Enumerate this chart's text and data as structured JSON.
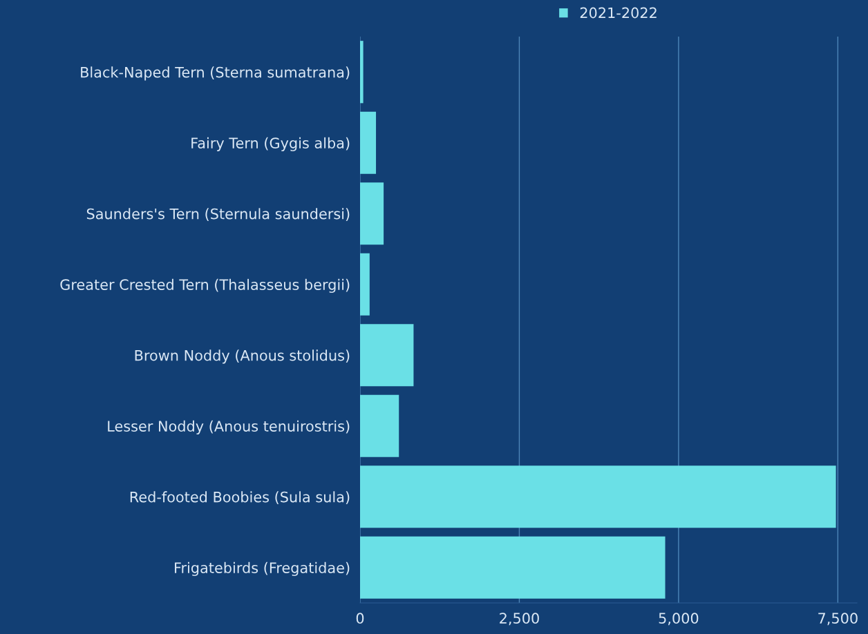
{
  "chart_data": {
    "type": "bar",
    "orientation": "horizontal",
    "categories": [
      "Black-Naped Tern (Sterna sumatrana)",
      "Fairy Tern (Gygis alba)",
      "Saunders's Tern (Sternula saundersi)",
      "Greater Crested Tern (Thalasseus bergii)",
      "Brown Noddy (Anous stolidus)",
      "Lesser Noddy (Anous tenuirostris)",
      "Red-footed Boobies (Sula sula)",
      "Frigatebirds (Fregatidae)"
    ],
    "series": [
      {
        "name": "2021-2022",
        "color": "#6ae0e6",
        "values": [
          50,
          250,
          370,
          150,
          840,
          610,
          7470,
          4790
        ]
      }
    ],
    "xlim": [
      0,
      7800
    ],
    "xticks": [
      0,
      {
        "value": 2500,
        "label": "2,500"
      },
      {
        "value": 5000,
        "label": "5,000"
      },
      {
        "value": 7500,
        "label": "7,500"
      }
    ],
    "grid": "x",
    "legend": "top"
  }
}
